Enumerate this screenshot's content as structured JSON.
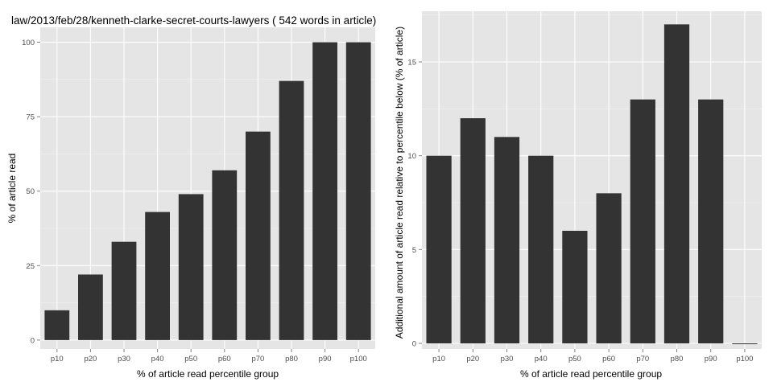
{
  "chart_data": [
    {
      "type": "bar",
      "title": "law/2013/feb/28/kenneth-clarke-secret-courts-lawyers ( 542 words in article)",
      "xlabel": "% of article read percentile group",
      "ylabel": "% of article read",
      "categories": [
        "p10",
        "p20",
        "p30",
        "p40",
        "p50",
        "p60",
        "p70",
        "p80",
        "p90",
        "p100"
      ],
      "values": [
        10,
        22,
        33,
        43,
        49,
        57,
        70,
        87,
        100,
        100
      ],
      "ylim": [
        -3,
        105
      ],
      "yticks": [
        0,
        25,
        50,
        75,
        100
      ],
      "grid": true,
      "bar_color": "#333333",
      "panel_color": "#e5e5e5"
    },
    {
      "type": "bar",
      "title": "",
      "xlabel": "% of article read percentile group",
      "ylabel": "Additional amount of article read relative to percentile below (% of article)",
      "categories": [
        "p10",
        "p20",
        "p30",
        "p40",
        "p50",
        "p60",
        "p70",
        "p80",
        "p90",
        "p100"
      ],
      "values": [
        10,
        12,
        11,
        10,
        6,
        8,
        13,
        17,
        13,
        0
      ],
      "ylim": [
        -0.3,
        17.7
      ],
      "yticks": [
        0,
        5,
        10,
        15
      ],
      "grid": true,
      "bar_color": "#333333",
      "panel_color": "#e5e5e5"
    }
  ]
}
